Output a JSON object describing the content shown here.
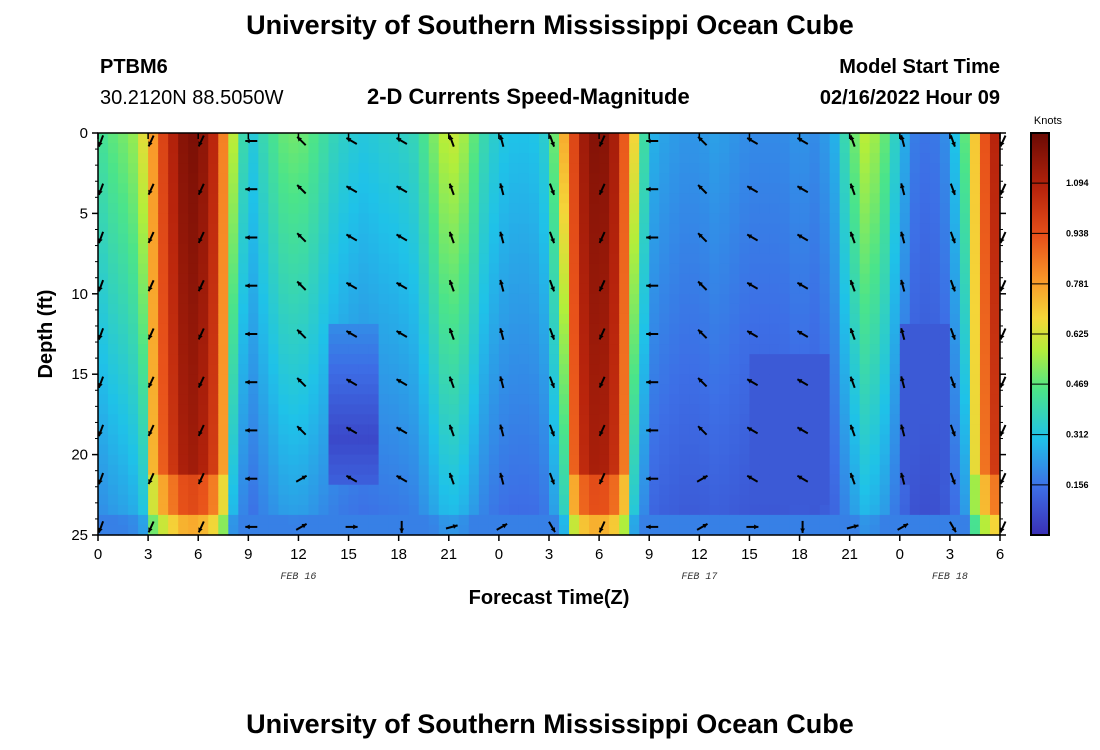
{
  "header": {
    "title": "University of Southern Mississippi Ocean Cube",
    "station_id": "PTBM6",
    "coordinates": "30.2120N  88.5050W",
    "plot_title": "2-D Currents Speed-Magnitude",
    "model_start_label": "Model Start Time",
    "model_start_value": "02/16/2022 Hour 09"
  },
  "footer": {
    "title": "University of Southern Mississippi Ocean Cube"
  },
  "chart_data": {
    "type": "heatmap",
    "title": "2-D Currents Speed-Magnitude",
    "xlabel": "Forecast Time(Z)",
    "ylabel": "Depth (ft)",
    "x_ticks": [
      "0",
      "3",
      "6",
      "9",
      "12",
      "15",
      "18",
      "21",
      "0",
      "3",
      "6",
      "9",
      "12",
      "15",
      "18",
      "21",
      "0",
      "3",
      "6"
    ],
    "x_range_hours": [
      0,
      54
    ],
    "y_ticks": [
      "0",
      "5",
      "10",
      "15",
      "20",
      "25"
    ],
    "y_range_ft": [
      0,
      25
    ],
    "y_inverted": true,
    "date_labels": [
      {
        "text": "FEB 16",
        "hour": 12
      },
      {
        "text": "FEB 17",
        "hour": 36
      },
      {
        "text": "FEB 18",
        "hour": 51
      }
    ],
    "colorbar": {
      "unit": "Knots",
      "ticks": [
        "1.094",
        "0.938",
        "0.781",
        "0.625",
        "0.469",
        "0.312",
        "0.156"
      ],
      "tick_values": [
        1.094,
        0.938,
        0.781,
        0.625,
        0.469,
        0.312,
        0.156
      ],
      "range": [
        0.0,
        1.25
      ]
    },
    "surface_speed_by_hour": [
      [
        0,
        0.42
      ],
      [
        1,
        0.48
      ],
      [
        2,
        0.52
      ],
      [
        3,
        0.7
      ],
      [
        4,
        1.0
      ],
      [
        5,
        1.18
      ],
      [
        6,
        1.22
      ],
      [
        7,
        1.05
      ],
      [
        8,
        0.62
      ],
      [
        9,
        0.3
      ],
      [
        10,
        0.4
      ],
      [
        11,
        0.48
      ],
      [
        12,
        0.5
      ],
      [
        13,
        0.45
      ],
      [
        14,
        0.38
      ],
      [
        15,
        0.34
      ],
      [
        16,
        0.32
      ],
      [
        17,
        0.34
      ],
      [
        18,
        0.35
      ],
      [
        19,
        0.38
      ],
      [
        20,
        0.5
      ],
      [
        21,
        0.62
      ],
      [
        22,
        0.55
      ],
      [
        23,
        0.4
      ],
      [
        24,
        0.32
      ],
      [
        25,
        0.3
      ],
      [
        26,
        0.3
      ],
      [
        27,
        0.36
      ],
      [
        28,
        0.8
      ],
      [
        29,
        1.12
      ],
      [
        30,
        1.22
      ],
      [
        31,
        1.1
      ],
      [
        32,
        0.72
      ],
      [
        33,
        0.28
      ],
      [
        34,
        0.24
      ],
      [
        35,
        0.22
      ],
      [
        36,
        0.22
      ],
      [
        37,
        0.24
      ],
      [
        38,
        0.22
      ],
      [
        39,
        0.2
      ],
      [
        40,
        0.2
      ],
      [
        41,
        0.2
      ],
      [
        42,
        0.22
      ],
      [
        43,
        0.2
      ],
      [
        44,
        0.25
      ],
      [
        45,
        0.45
      ],
      [
        46,
        0.6
      ],
      [
        47,
        0.5
      ],
      [
        48,
        0.3
      ],
      [
        49,
        0.16
      ],
      [
        50,
        0.16
      ],
      [
        51,
        0.22
      ],
      [
        52,
        0.5
      ],
      [
        53,
        0.9
      ],
      [
        54,
        1.15
      ]
    ],
    "vector_grid": {
      "hours": [
        0,
        3,
        6,
        9,
        12,
        15,
        18,
        21,
        24,
        27,
        30,
        33,
        36,
        39,
        42,
        45,
        48,
        51,
        54
      ],
      "depths_ft": [
        0,
        3,
        6,
        9,
        12,
        15,
        18,
        21,
        24
      ],
      "note": "arrows show current direction; bearings in degrees (0=up)"
    }
  }
}
